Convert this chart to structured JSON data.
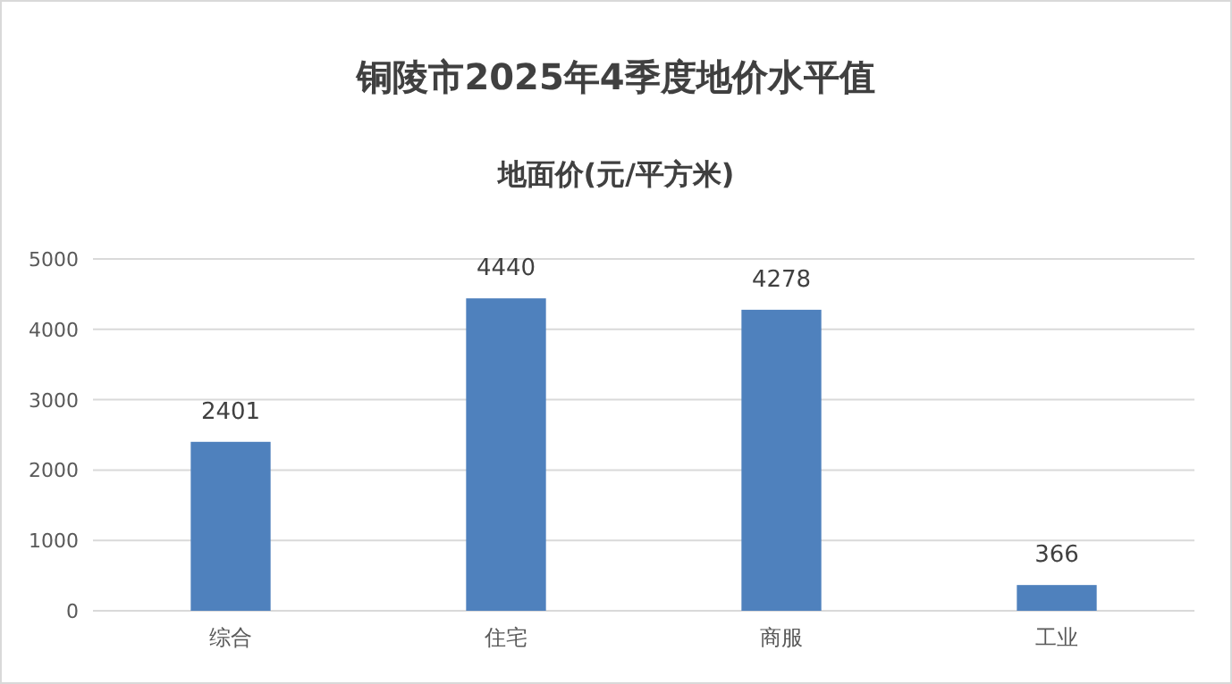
{
  "chart_data": {
    "type": "bar",
    "title": "铜陵市2025年4季度地价水平值",
    "subtitle": "地面价(元/平方米)",
    "categories": [
      "综合",
      "住宅",
      "商服",
      "工业"
    ],
    "values": [
      2401,
      4440,
      4278,
      366
    ],
    "color": "#4f81bd",
    "ylim": [
      0,
      5000
    ],
    "yticks": [
      0,
      1000,
      2000,
      3000,
      4000,
      5000
    ],
    "grid": "y",
    "data_labels": true
  }
}
